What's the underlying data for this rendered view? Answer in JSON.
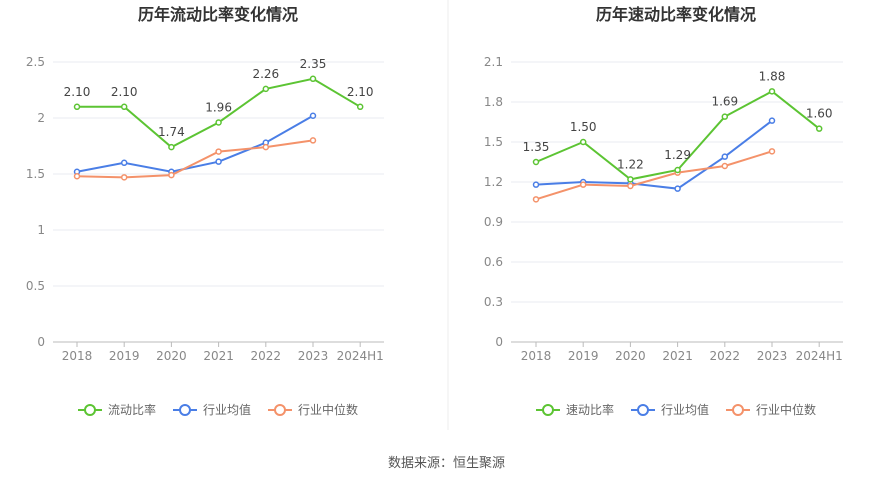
{
  "source": "数据来源：恒生聚源",
  "chart_data": [
    {
      "type": "line",
      "title": "历年流动比率变化情况",
      "categories": [
        "2018",
        "2019",
        "2020",
        "2021",
        "2022",
        "2023",
        "2024H1"
      ],
      "ylim": [
        0,
        2.5
      ],
      "yticks": [
        "0",
        "0.5",
        "1",
        "1.5",
        "2",
        "2.5"
      ],
      "grid": true,
      "legend_position": "bottom",
      "series": [
        {
          "name": "流动比率",
          "color": "#5cc433",
          "values": [
            2.1,
            2.1,
            1.74,
            1.96,
            2.26,
            2.35,
            2.1
          ],
          "labels": [
            "2.10",
            "2.10",
            "1.74",
            "1.96",
            "2.26",
            "2.35",
            "2.10"
          ]
        },
        {
          "name": "行业均值",
          "color": "#4a7ee6",
          "values": [
            1.52,
            1.6,
            1.52,
            1.61,
            1.78,
            2.02,
            null
          ]
        },
        {
          "name": "行业中位数",
          "color": "#f4926a",
          "values": [
            1.48,
            1.47,
            1.49,
            1.7,
            1.74,
            1.8,
            null
          ]
        }
      ]
    },
    {
      "type": "line",
      "title": "历年速动比率变化情况",
      "categories": [
        "2018",
        "2019",
        "2020",
        "2021",
        "2022",
        "2023",
        "2024H1"
      ],
      "ylim": [
        0,
        2.1
      ],
      "yticks": [
        "0",
        "0.3",
        "0.6",
        "0.9",
        "1.2",
        "1.5",
        "1.8",
        "2.1"
      ],
      "grid": true,
      "legend_position": "bottom",
      "series": [
        {
          "name": "速动比率",
          "color": "#5cc433",
          "values": [
            1.35,
            1.5,
            1.22,
            1.29,
            1.69,
            1.88,
            1.6
          ],
          "labels": [
            "1.35",
            "1.50",
            "1.22",
            "1.29",
            "1.69",
            "1.88",
            "1.60"
          ]
        },
        {
          "name": "行业均值",
          "color": "#4a7ee6",
          "values": [
            1.18,
            1.2,
            1.19,
            1.15,
            1.39,
            1.66,
            null
          ]
        },
        {
          "name": "行业中位数",
          "color": "#f4926a",
          "values": [
            1.07,
            1.18,
            1.17,
            1.27,
            1.32,
            1.43,
            null
          ]
        }
      ]
    }
  ]
}
